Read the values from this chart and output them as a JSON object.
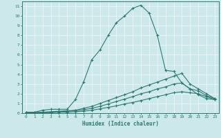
{
  "xlabel": "Humidex (Indice chaleur)",
  "ylabel": "",
  "xlim": [
    -0.5,
    23.5
  ],
  "ylim": [
    0,
    11.5
  ],
  "xticks": [
    0,
    1,
    2,
    3,
    4,
    5,
    6,
    7,
    8,
    9,
    10,
    11,
    12,
    13,
    14,
    15,
    16,
    17,
    18,
    19,
    20,
    21,
    22,
    23
  ],
  "yticks": [
    0,
    1,
    2,
    3,
    4,
    5,
    6,
    7,
    8,
    9,
    10,
    11
  ],
  "bg_color": "#cce8ea",
  "grid_color": "#e8f4f5",
  "line_color": "#2a7a72",
  "lines": [
    {
      "x": [
        0,
        1,
        2,
        3,
        4,
        5,
        6,
        7,
        8,
        9,
        10,
        11,
        12,
        13,
        14,
        15,
        16,
        17,
        18,
        19,
        20,
        21,
        22,
        23
      ],
      "y": [
        0.1,
        0.1,
        0.3,
        0.4,
        0.4,
        0.4,
        1.4,
        3.2,
        5.5,
        6.5,
        8.0,
        9.3,
        10.0,
        10.8,
        11.1,
        10.3,
        8.0,
        4.4,
        4.3,
        3.1,
        2.5,
        1.9,
        1.5,
        1.4
      ]
    },
    {
      "x": [
        0,
        1,
        2,
        3,
        4,
        5,
        6,
        7,
        8,
        9,
        10,
        11,
        12,
        13,
        14,
        15,
        16,
        17,
        18,
        19,
        20,
        21,
        22,
        23
      ],
      "y": [
        0.05,
        0.05,
        0.1,
        0.15,
        0.2,
        0.25,
        0.3,
        0.5,
        0.7,
        1.0,
        1.3,
        1.6,
        1.9,
        2.2,
        2.6,
        2.9,
        3.2,
        3.5,
        3.8,
        4.1,
        3.0,
        2.5,
        2.0,
        1.5
      ]
    },
    {
      "x": [
        0,
        1,
        2,
        3,
        4,
        5,
        6,
        7,
        8,
        9,
        10,
        11,
        12,
        13,
        14,
        15,
        16,
        17,
        18,
        19,
        20,
        21,
        22,
        23
      ],
      "y": [
        0.05,
        0.05,
        0.1,
        0.1,
        0.15,
        0.2,
        0.25,
        0.35,
        0.5,
        0.7,
        0.95,
        1.2,
        1.45,
        1.7,
        2.0,
        2.2,
        2.5,
        2.7,
        3.0,
        3.1,
        2.5,
        2.3,
        1.8,
        1.5
      ]
    },
    {
      "x": [
        0,
        1,
        2,
        3,
        4,
        5,
        6,
        7,
        8,
        9,
        10,
        11,
        12,
        13,
        14,
        15,
        16,
        17,
        18,
        19,
        20,
        21,
        22,
        23
      ],
      "y": [
        0.0,
        0.0,
        0.05,
        0.05,
        0.1,
        0.1,
        0.15,
        0.2,
        0.3,
        0.45,
        0.6,
        0.75,
        0.95,
        1.1,
        1.3,
        1.5,
        1.7,
        1.9,
        2.1,
        2.2,
        2.1,
        2.0,
        1.7,
        1.4
      ]
    }
  ]
}
